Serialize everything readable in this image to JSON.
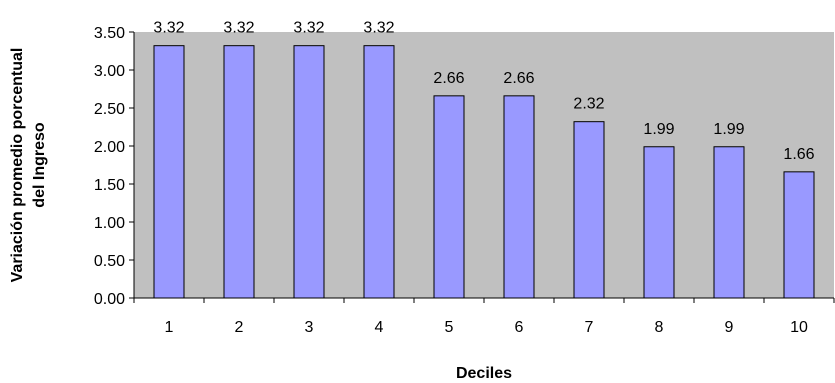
{
  "chart_data": {
    "type": "bar",
    "categories": [
      "1",
      "2",
      "3",
      "4",
      "5",
      "6",
      "7",
      "8",
      "9",
      "10"
    ],
    "values": [
      3.32,
      3.32,
      3.32,
      3.32,
      2.66,
      2.66,
      2.32,
      1.99,
      1.99,
      1.66
    ],
    "data_labels": [
      "3.32",
      "3.32",
      "3.32",
      "3.32",
      "2.66",
      "2.66",
      "2.32",
      "1.99",
      "1.99",
      "1.66"
    ],
    "xlabel": "Deciles",
    "ylabel_lines": [
      "Variación promedio porcentual",
      "del Ingreso"
    ],
    "ylim": [
      0,
      3.5
    ],
    "yticks": [
      "0.00",
      "0.50",
      "1.00",
      "1.50",
      "2.00",
      "2.50",
      "3.00",
      "3.50"
    ],
    "grid": false,
    "legend": "none",
    "colors": {
      "plot_background": "#c0c0c0",
      "bar_fill": "#9999ff",
      "bar_stroke": "#000000"
    }
  }
}
